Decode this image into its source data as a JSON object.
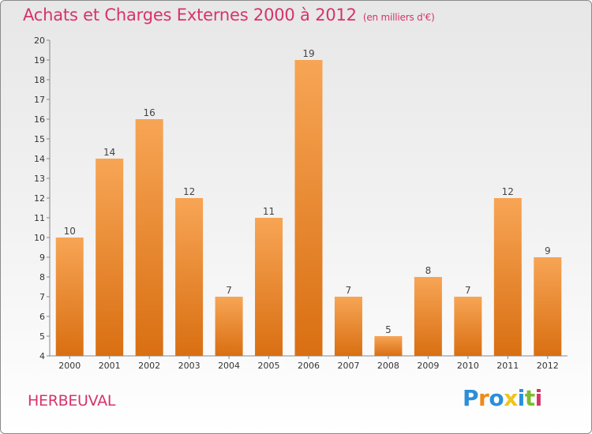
{
  "title": "Achats et Charges Externes 2000 à 2012",
  "subtitle": "(en milliers d'€)",
  "location": "HERBEUVAL",
  "logo": {
    "text": "Proxiti",
    "letters": [
      {
        "ch": "P",
        "color": "#2b8fd9"
      },
      {
        "ch": "r",
        "color": "#f08a1c"
      },
      {
        "ch": "o",
        "color": "#2b8fd9"
      },
      {
        "ch": "x",
        "color": "#f0c419"
      },
      {
        "ch": "i",
        "color": "#2b8fd9"
      },
      {
        "ch": "t",
        "color": "#7dbb32"
      },
      {
        "ch": "i",
        "color": "#d6336c"
      }
    ]
  },
  "chart_data": {
    "type": "bar",
    "categories": [
      "2000",
      "2001",
      "2002",
      "2003",
      "2004",
      "2005",
      "2006",
      "2007",
      "2008",
      "2009",
      "2010",
      "2011",
      "2012"
    ],
    "values": [
      10,
      14,
      16,
      12,
      7,
      11,
      19,
      7,
      5,
      8,
      7,
      12,
      9
    ],
    "ylim": [
      4,
      20
    ],
    "yticks": [
      4,
      5,
      6,
      7,
      8,
      9,
      10,
      11,
      12,
      13,
      14,
      15,
      16,
      17,
      18,
      19,
      20
    ],
    "bar_color": "#f08a2c",
    "grid": false,
    "data_labels": true
  }
}
